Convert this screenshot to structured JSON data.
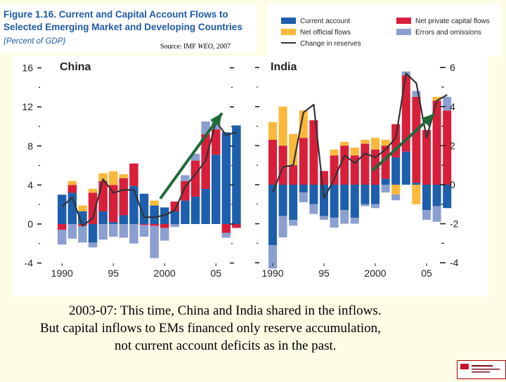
{
  "figure": {
    "title_line1": "Figure 1.16.  Current and Capital Account Flows to",
    "title_line2": "Selected Emerging Market and Developing Countries",
    "subtitle": "(Percent of GDP)",
    "source_prefix": "Source: IMF ",
    "source_italic": "WEO",
    "source_suffix": ", 2007"
  },
  "legend": [
    {
      "label": "Current account",
      "color": "#1d5fac"
    },
    {
      "label": "Net private capital flows",
      "color": "#d81f3a"
    },
    {
      "label": "Net official flows",
      "color": "#fbb83a"
    },
    {
      "label": "Errors and omissions",
      "color": "#8c9fd1"
    },
    {
      "label": "Change in reserves",
      "color": "#333333"
    }
  ],
  "colors": {
    "current_account": "#1d5fac",
    "private": "#d81f3a",
    "official": "#fbb83a",
    "errors": "#8c9fd1",
    "reserves": "#333333",
    "arrow": "#1e6b3a"
  },
  "chart_data": [
    {
      "type": "bar",
      "panel": "China",
      "stacked": true,
      "axis_side": "left",
      "x": [
        1990,
        1991,
        1992,
        1993,
        1994,
        1995,
        1996,
        1997,
        1998,
        1999,
        2000,
        2001,
        2002,
        2003,
        2004,
        2005,
        2006,
        2007
      ],
      "xticks": [
        "1990",
        "95",
        "2000",
        "05"
      ],
      "ylim": [
        -4,
        16
      ],
      "yticks": [
        "-4",
        "0",
        "4",
        "8",
        "12",
        "16"
      ],
      "series": [
        {
          "name": "Current account",
          "values": [
            3.0,
            3.2,
            1.3,
            -1.9,
            1.3,
            0.2,
            0.9,
            3.9,
            3.1,
            1.9,
            1.7,
            1.3,
            2.4,
            2.8,
            3.6,
            7.1,
            9.4,
            10.1
          ]
        },
        {
          "name": "Net private capital flows",
          "values": [
            -0.6,
            0.8,
            -0.2,
            3.2,
            3.1,
            3.8,
            3.8,
            2.3,
            -0.1,
            -0.2,
            -0.4,
            1.0,
            2.0,
            3.7,
            5.6,
            2.6,
            -0.9,
            -0.4
          ]
        },
        {
          "name": "Net official flows",
          "values": [
            0,
            0.4,
            0.6,
            0.4,
            0.8,
            1.4,
            0.4,
            0,
            0,
            0.5,
            0,
            0,
            0,
            0,
            0,
            0,
            0,
            0
          ]
        },
        {
          "name": "Errors and omissions",
          "values": [
            -1.5,
            -1.5,
            -1.7,
            -0.5,
            -1.6,
            -1.3,
            -1.4,
            -2.0,
            -1.2,
            -3.3,
            -1.3,
            -0.3,
            0.6,
            0.7,
            1.3,
            0.8,
            -0.5,
            0
          ]
        }
      ],
      "reserves": [
        1.8,
        2.7,
        -0.2,
        0.6,
        4.6,
        3.2,
        3.5,
        3.5,
        0.7,
        0.7,
        0.9,
        1.4,
        3.8,
        5.1,
        6.5,
        10.5,
        9.1,
        9.4
      ]
    },
    {
      "type": "bar",
      "panel": "India",
      "stacked": true,
      "axis_side": "right",
      "x": [
        1990,
        1991,
        1992,
        1993,
        1994,
        1995,
        1996,
        1997,
        1998,
        1999,
        2000,
        2001,
        2002,
        2003,
        2004,
        2005,
        2006,
        2007
      ],
      "xticks": [
        "1990",
        "95",
        "2000",
        "05"
      ],
      "ylim": [
        -4,
        6
      ],
      "yticks": [
        "-4",
        "-2",
        "0",
        "2",
        "4",
        "6"
      ],
      "series": [
        {
          "name": "Current account",
          "values": [
            -3.1,
            -1.6,
            -1.8,
            -0.4,
            -1.0,
            -1.6,
            -1.7,
            -1.3,
            -1.7,
            -1.0,
            -1.0,
            0.3,
            1.4,
            1.7,
            0.1,
            -1.3,
            -1.1,
            -1.2
          ]
        },
        {
          "name": "Net private capital flows",
          "values": [
            2.3,
            2.0,
            1.0,
            2.4,
            3.3,
            0.7,
            1.5,
            2.0,
            1.5,
            2.1,
            1.8,
            1.7,
            1.7,
            3.9,
            4.4,
            2.8,
            4.3,
            3.8
          ]
        },
        {
          "name": "Net official flows",
          "values": [
            0.9,
            2.0,
            1.6,
            1.4,
            0,
            0,
            0.3,
            0.2,
            0.4,
            0.2,
            0.6,
            0.3,
            -0.5,
            0,
            -1.0,
            0,
            0.2,
            0
          ]
        },
        {
          "name": "Errors and omissions",
          "values": [
            -1.2,
            -1.1,
            -0.3,
            -0.5,
            -0.5,
            -0.2,
            -0.5,
            -0.7,
            -0.3,
            -0.1,
            -0.2,
            -0.4,
            -0.3,
            0.2,
            0.3,
            -0.5,
            -0.8,
            0.7
          ]
        }
      ],
      "reserves": [
        -0.4,
        0.9,
        1.0,
        3.7,
        4.1,
        -0.7,
        0.3,
        1.5,
        1.1,
        1.6,
        1.4,
        1.8,
        2.4,
        5.7,
        5.2,
        2.4,
        4.3,
        4.6
      ]
    }
  ],
  "caption": {
    "line1": "2003-07: This time, China and India shared in the inflows.",
    "line2": "But capital inflows to EMs financed only reserve accumulation,",
    "line3": "not current account deficits as in the past."
  }
}
